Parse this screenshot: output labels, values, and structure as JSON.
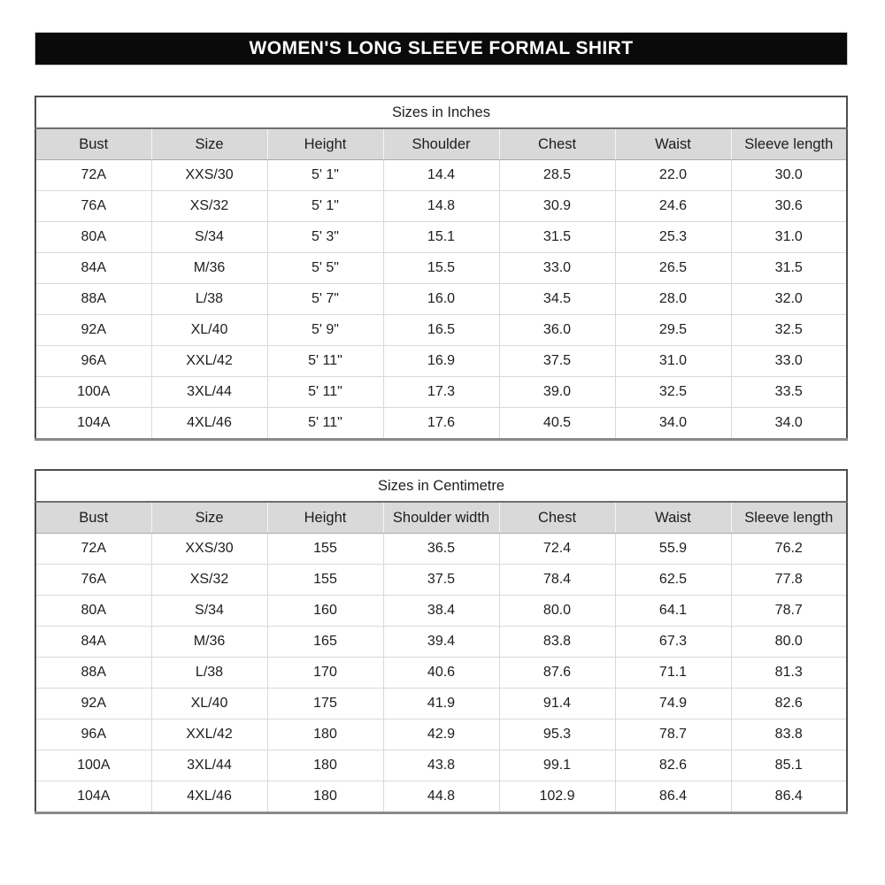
{
  "title": "WOMEN'S LONG SLEEVE FORMAL SHIRT",
  "colors": {
    "title_bar_bg": "#0a0a0a",
    "title_text": "#ffffff",
    "header_row_bg": "#d9d9d9",
    "body_text": "#1d1d1d",
    "outer_border": "#4d4d4d",
    "grid_line": "#d9d9d9"
  },
  "tables": [
    {
      "caption": "Sizes in Inches",
      "columns": [
        "Bust",
        "Size",
        "Height",
        "Shoulder",
        "Chest",
        "Waist",
        "Sleeve length"
      ],
      "rows": [
        [
          "72A",
          "XXS/30",
          "5' 1\"",
          "14.4",
          "28.5",
          "22.0",
          "30.0"
        ],
        [
          "76A",
          "XS/32",
          "5' 1\"",
          "14.8",
          "30.9",
          "24.6",
          "30.6"
        ],
        [
          "80A",
          "S/34",
          "5' 3\"",
          "15.1",
          "31.5",
          "25.3",
          "31.0"
        ],
        [
          "84A",
          "M/36",
          "5' 5\"",
          "15.5",
          "33.0",
          "26.5",
          "31.5"
        ],
        [
          "88A",
          "L/38",
          "5' 7\"",
          "16.0",
          "34.5",
          "28.0",
          "32.0"
        ],
        [
          "92A",
          "XL/40",
          "5' 9\"",
          "16.5",
          "36.0",
          "29.5",
          "32.5"
        ],
        [
          "96A",
          "XXL/42",
          "5' 11\"",
          "16.9",
          "37.5",
          "31.0",
          "33.0"
        ],
        [
          "100A",
          "3XL/44",
          "5' 11\"",
          "17.3",
          "39.0",
          "32.5",
          "33.5"
        ],
        [
          "104A",
          "4XL/46",
          "5' 11\"",
          "17.6",
          "40.5",
          "34.0",
          "34.0"
        ]
      ]
    },
    {
      "caption": "Sizes in Centimetre",
      "columns": [
        "Bust",
        "Size",
        "Height",
        "Shoulder width",
        "Chest",
        "Waist",
        "Sleeve length"
      ],
      "rows": [
        [
          "72A",
          "XXS/30",
          "155",
          "36.5",
          "72.4",
          "55.9",
          "76.2"
        ],
        [
          "76A",
          "XS/32",
          "155",
          "37.5",
          "78.4",
          "62.5",
          "77.8"
        ],
        [
          "80A",
          "S/34",
          "160",
          "38.4",
          "80.0",
          "64.1",
          "78.7"
        ],
        [
          "84A",
          "M/36",
          "165",
          "39.4",
          "83.8",
          "67.3",
          "80.0"
        ],
        [
          "88A",
          "L/38",
          "170",
          "40.6",
          "87.6",
          "71.1",
          "81.3"
        ],
        [
          "92A",
          "XL/40",
          "175",
          "41.9",
          "91.4",
          "74.9",
          "82.6"
        ],
        [
          "96A",
          "XXL/42",
          "180",
          "42.9",
          "95.3",
          "78.7",
          "83.8"
        ],
        [
          "100A",
          "3XL/44",
          "180",
          "43.8",
          "99.1",
          "82.6",
          "85.1"
        ],
        [
          "104A",
          "4XL/46",
          "180",
          "44.8",
          "102.9",
          "86.4",
          "86.4"
        ]
      ]
    }
  ]
}
